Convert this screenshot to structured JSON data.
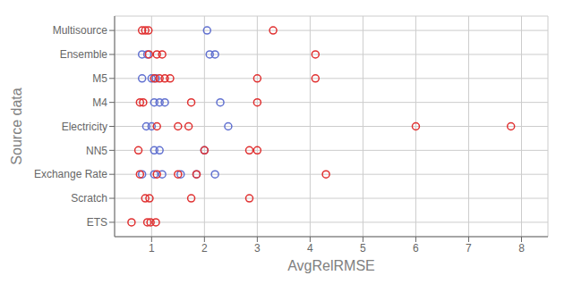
{
  "chart_data": {
    "type": "scatter",
    "xlabel": "AvgRelRMSE",
    "ylabel": "Source data",
    "categories": [
      "ETS",
      "Scratch",
      "Exchange Rate",
      "NN5",
      "Electricity",
      "M4",
      "M5",
      "Ensemble",
      "Multisource"
    ],
    "xlim": [
      0.3,
      8.5
    ],
    "xticks": [
      1,
      2,
      3,
      4,
      5,
      6,
      7,
      8
    ],
    "grid": true,
    "marker": "hollow circle",
    "series": [
      {
        "color": "#6070d0",
        "values": [
          [],
          [],
          [
            0.82,
            1.05,
            1.2,
            1.55,
            1.85,
            2.2
          ],
          [
            1.05,
            1.15,
            2.0
          ],
          [
            0.9,
            1.0,
            2.45
          ],
          [
            1.05,
            1.15,
            1.25,
            2.3
          ],
          [
            0.82,
            1.0,
            1.08
          ],
          [
            0.82,
            0.92,
            2.1,
            2.2
          ],
          [
            2.05
          ]
        ]
      },
      {
        "color": "#e03030",
        "values": [
          [
            0.62,
            0.92,
            0.98,
            1.08
          ],
          [
            0.88,
            0.96,
            1.75,
            2.85
          ],
          [
            0.78,
            1.1,
            1.5,
            1.85,
            4.3
          ],
          [
            0.75,
            2.0,
            2.85,
            3.0
          ],
          [
            1.1,
            1.5,
            1.7,
            6.0,
            7.8
          ],
          [
            0.78,
            0.84,
            1.75,
            3.0
          ],
          [
            1.05,
            1.15,
            1.25,
            1.35,
            3.0,
            4.1
          ],
          [
            0.95,
            1.1,
            1.2,
            4.1
          ],
          [
            0.82,
            0.88,
            0.94,
            3.3
          ]
        ]
      }
    ]
  }
}
